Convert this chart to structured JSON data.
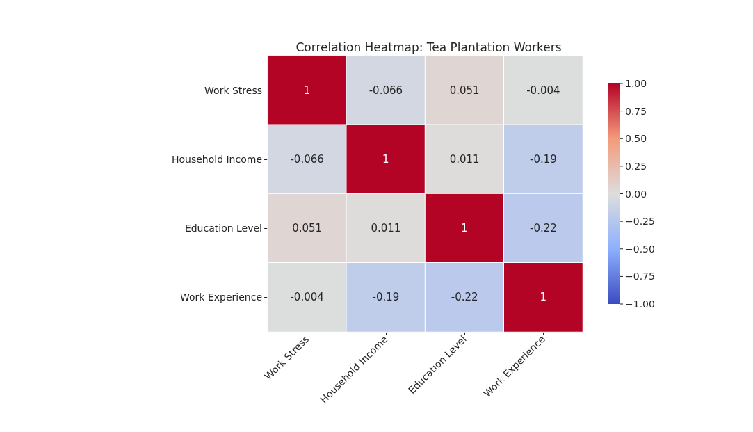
{
  "chart_data": {
    "type": "heatmap",
    "title": "Correlation Heatmap: Tea Plantation Workers",
    "categories": [
      "Work Stress",
      "Household Income",
      "Education Level",
      "Work Experience"
    ],
    "y_categories": [
      "Work Stress",
      "Household Income",
      "Education Level",
      "Work Experience"
    ],
    "cells": [
      [
        1,
        -0.066,
        0.051,
        -0.004
      ],
      [
        -0.066,
        1,
        0.011,
        -0.19
      ],
      [
        0.051,
        0.011,
        1,
        -0.22
      ],
      [
        -0.004,
        -0.19,
        -0.22,
        1
      ]
    ],
    "data_labels": true,
    "clim": [
      -1,
      1
    ],
    "cticks": [
      {
        "value": -1,
        "label": "−1.00"
      },
      {
        "value": -0.75,
        "label": "−0.75"
      },
      {
        "value": -0.5,
        "label": "−0.50"
      },
      {
        "value": -0.25,
        "label": "−0.25"
      },
      {
        "value": 0,
        "label": "0.00"
      },
      {
        "value": 0.25,
        "label": "0.25"
      },
      {
        "value": 0.5,
        "label": "0.50"
      },
      {
        "value": 0.75,
        "label": "0.75"
      },
      {
        "value": 1,
        "label": "1.00"
      }
    ]
  }
}
